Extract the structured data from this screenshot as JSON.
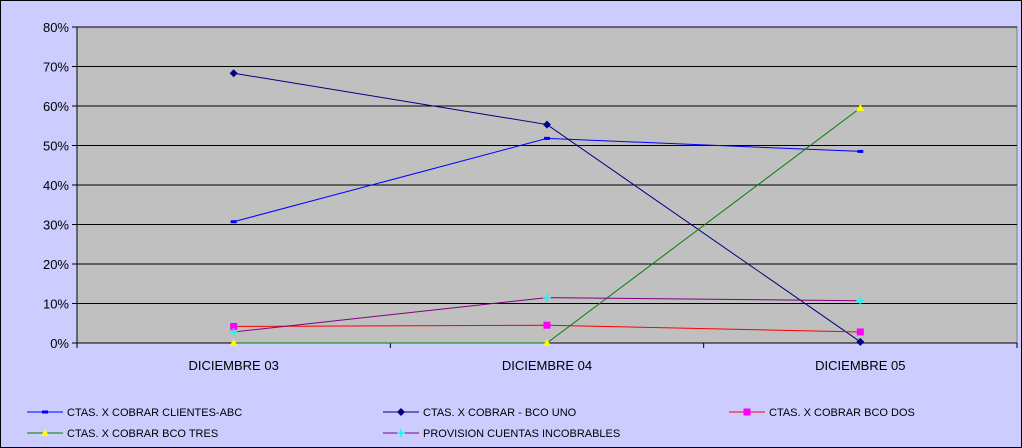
{
  "chart_data": {
    "type": "line",
    "title": "",
    "xlabel": "",
    "ylabel": "",
    "categories": [
      "DICIEMBRE 03",
      "DICIEMBRE 04",
      "DICIEMBRE 05"
    ],
    "ylim": [
      0,
      80
    ],
    "yticks": [
      "0%",
      "10%",
      "20%",
      "30%",
      "40%",
      "50%",
      "60%",
      "70%",
      "80%"
    ],
    "grid": true,
    "legend_position": "bottom",
    "series": [
      {
        "name": "CTAS. X COBRAR CLIENTES-ABC",
        "values": [
          30.7,
          51.8,
          48.5
        ],
        "color": "#0000ff",
        "marker": "dash"
      },
      {
        "name": "CTAS. X COBRAR - BCO UNO",
        "values": [
          68.3,
          55.3,
          0.3
        ],
        "color": "#000080",
        "marker": "diamond"
      },
      {
        "name": "CTAS. X COBRAR BCO DOS",
        "values": [
          4.2,
          4.5,
          2.8
        ],
        "color": "#ff0000",
        "markerColor": "#ff00ff",
        "marker": "square"
      },
      {
        "name": "CTAS. X COBRAR BCO TRES",
        "values": [
          0.0,
          0.0,
          59.5
        ],
        "color": "#008000",
        "markerColor": "#ffff00",
        "marker": "triangle"
      },
      {
        "name": "PROVISION CUENTAS INCOBRABLES",
        "values": [
          2.8,
          11.5,
          10.7
        ],
        "color": "#800080",
        "markerColor": "#00ffff",
        "marker": "star"
      }
    ]
  }
}
